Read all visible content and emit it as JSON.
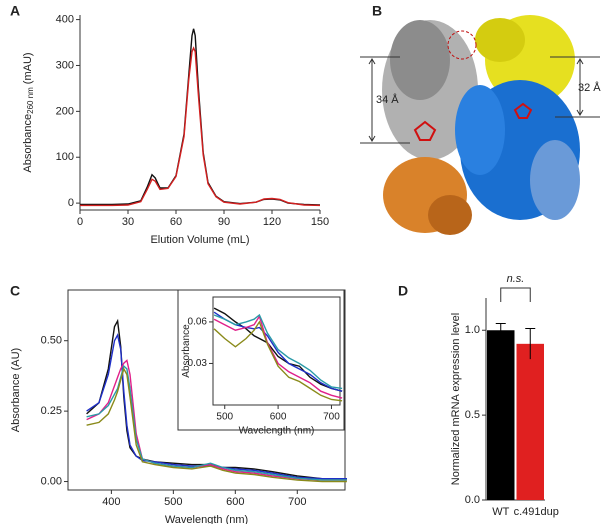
{
  "chart_data": [
    {
      "type": "line",
      "panel": "A",
      "xlabel": "Elution Volume (mL)",
      "ylabel": "Absorbance",
      "ylabel_sub": "260 nm",
      "ylabel_unit": "(mAU)",
      "x": [
        0,
        10,
        20,
        30,
        38,
        42,
        45,
        47,
        50,
        55,
        60,
        65,
        68,
        70,
        71,
        72,
        74,
        77,
        80,
        85,
        90,
        100,
        110,
        115,
        120,
        125,
        130,
        140,
        150
      ],
      "series": [
        {
          "color": "#111111",
          "values": [
            -3,
            -3,
            -3,
            -2,
            5,
            35,
            62,
            55,
            33,
            33,
            60,
            150,
            280,
            365,
            380,
            365,
            250,
            110,
            45,
            15,
            3,
            -1,
            2,
            8,
            9,
            7,
            0,
            -3,
            -4
          ]
        },
        {
          "color": "#d42020",
          "values": [
            -5,
            -5,
            -5,
            -4,
            3,
            30,
            52,
            48,
            30,
            32,
            58,
            145,
            270,
            330,
            338,
            330,
            235,
            105,
            42,
            14,
            2,
            -2,
            2,
            9,
            10,
            8,
            1,
            -4,
            -5
          ]
        }
      ],
      "xlim": [
        0,
        150
      ],
      "xticks": [
        0,
        30,
        60,
        90,
        120,
        150
      ],
      "ylim": [
        -15,
        410
      ],
      "yticks": [
        0,
        100,
        200,
        300,
        400
      ]
    },
    {
      "type": "line",
      "panel": "C",
      "xlabel": "Wavelength (nm)",
      "ylabel": "Absorbance (AU)",
      "x": [
        360,
        380,
        395,
        405,
        410,
        415,
        420,
        425,
        430,
        440,
        450,
        470,
        500,
        530,
        560,
        580,
        600,
        630,
        660,
        700,
        740,
        780
      ],
      "series": [
        {
          "color": "#111111",
          "values": [
            0.24,
            0.28,
            0.4,
            0.55,
            0.57,
            0.48,
            0.3,
            0.18,
            0.12,
            0.09,
            0.08,
            0.07,
            0.065,
            0.06,
            0.06,
            0.05,
            0.05,
            0.045,
            0.035,
            0.02,
            0.01,
            0.01
          ]
        },
        {
          "color": "#1f2fc8",
          "values": [
            0.25,
            0.28,
            0.38,
            0.5,
            0.52,
            0.47,
            0.32,
            0.2,
            0.13,
            0.09,
            0.075,
            0.07,
            0.06,
            0.055,
            0.055,
            0.05,
            0.045,
            0.04,
            0.03,
            0.015,
            0.01,
            0.01
          ]
        },
        {
          "color": "#e0208a",
          "values": [
            0.22,
            0.24,
            0.28,
            0.34,
            0.37,
            0.4,
            0.42,
            0.43,
            0.38,
            0.17,
            0.08,
            0.065,
            0.055,
            0.05,
            0.06,
            0.045,
            0.035,
            0.03,
            0.02,
            0.01,
            0.005,
            0.005
          ]
        },
        {
          "color": "#2a9aa8",
          "values": [
            0.23,
            0.24,
            0.27,
            0.31,
            0.33,
            0.37,
            0.41,
            0.4,
            0.33,
            0.15,
            0.08,
            0.065,
            0.055,
            0.05,
            0.065,
            0.05,
            0.04,
            0.035,
            0.025,
            0.012,
            0.006,
            0.006
          ]
        },
        {
          "color": "#8a8a1a",
          "values": [
            0.2,
            0.21,
            0.24,
            0.29,
            0.32,
            0.36,
            0.4,
            0.38,
            0.3,
            0.13,
            0.07,
            0.06,
            0.05,
            0.045,
            0.055,
            0.04,
            0.03,
            0.025,
            0.015,
            0.005,
            0.0,
            0.0
          ]
        }
      ],
      "xlim": [
        330,
        777
      ],
      "xticks": [
        400,
        500,
        600,
        700
      ],
      "ylim": [
        -0.03,
        0.68
      ],
      "yticks": [
        {
          "value": 0,
          "label": "0.00"
        },
        0.25,
        {
          "value": 0.5,
          "label": "0.50"
        }
      ]
    },
    {
      "type": "line",
      "xlabel": "Wavelength (nm)",
      "ylabel": "Absorbance",
      "x": [
        480,
        500,
        520,
        540,
        555,
        565,
        580,
        600,
        620,
        640,
        660,
        680,
        700,
        720
      ],
      "series": [
        {
          "color": "#111111",
          "values": [
            0.07,
            0.066,
            0.06,
            0.055,
            0.05,
            0.048,
            0.045,
            0.035,
            0.03,
            0.028,
            0.02,
            0.015,
            0.012,
            0.01
          ]
        },
        {
          "color": "#1f2fc8",
          "values": [
            0.067,
            0.062,
            0.058,
            0.056,
            0.055,
            0.056,
            0.05,
            0.038,
            0.03,
            0.026,
            0.022,
            0.016,
            0.012,
            0.01
          ]
        },
        {
          "color": "#e0208a",
          "values": [
            0.062,
            0.058,
            0.054,
            0.056,
            0.058,
            0.064,
            0.045,
            0.03,
            0.024,
            0.02,
            0.016,
            0.01,
            0.007,
            0.005
          ]
        },
        {
          "color": "#2a9aa8",
          "values": [
            0.065,
            0.062,
            0.058,
            0.06,
            0.062,
            0.065,
            0.052,
            0.04,
            0.034,
            0.03,
            0.025,
            0.018,
            0.013,
            0.012
          ]
        },
        {
          "color": "#8a8a1a",
          "values": [
            0.055,
            0.048,
            0.042,
            0.048,
            0.054,
            0.06,
            0.044,
            0.028,
            0.02,
            0.017,
            0.012,
            0.007,
            0.004,
            0.003
          ]
        }
      ],
      "xlim": [
        478,
        716
      ],
      "xticks": [
        500,
        600,
        700
      ],
      "ylim": [
        0,
        0.078
      ],
      "yticks": [
        0.03,
        0.06
      ]
    },
    {
      "type": "bar",
      "panel": "D",
      "ylabel": "Normalized mRNA expression level",
      "annotation": "n.s.",
      "categories": [
        "WT",
        "c.491dup"
      ],
      "values": [
        1.0,
        0.92
      ],
      "errors": [
        0.04,
        0.09
      ],
      "colors": [
        "#000000",
        "#e02020"
      ],
      "ylim": [
        0,
        1.19
      ],
      "yticks": [
        {
          "value": 0,
          "label": "0.0"
        },
        0.5,
        {
          "value": 1,
          "label": "1.0"
        }
      ]
    }
  ],
  "structure_panel": {
    "label": "B",
    "left_distance": "34 Å",
    "right_distance": "32 Å"
  }
}
